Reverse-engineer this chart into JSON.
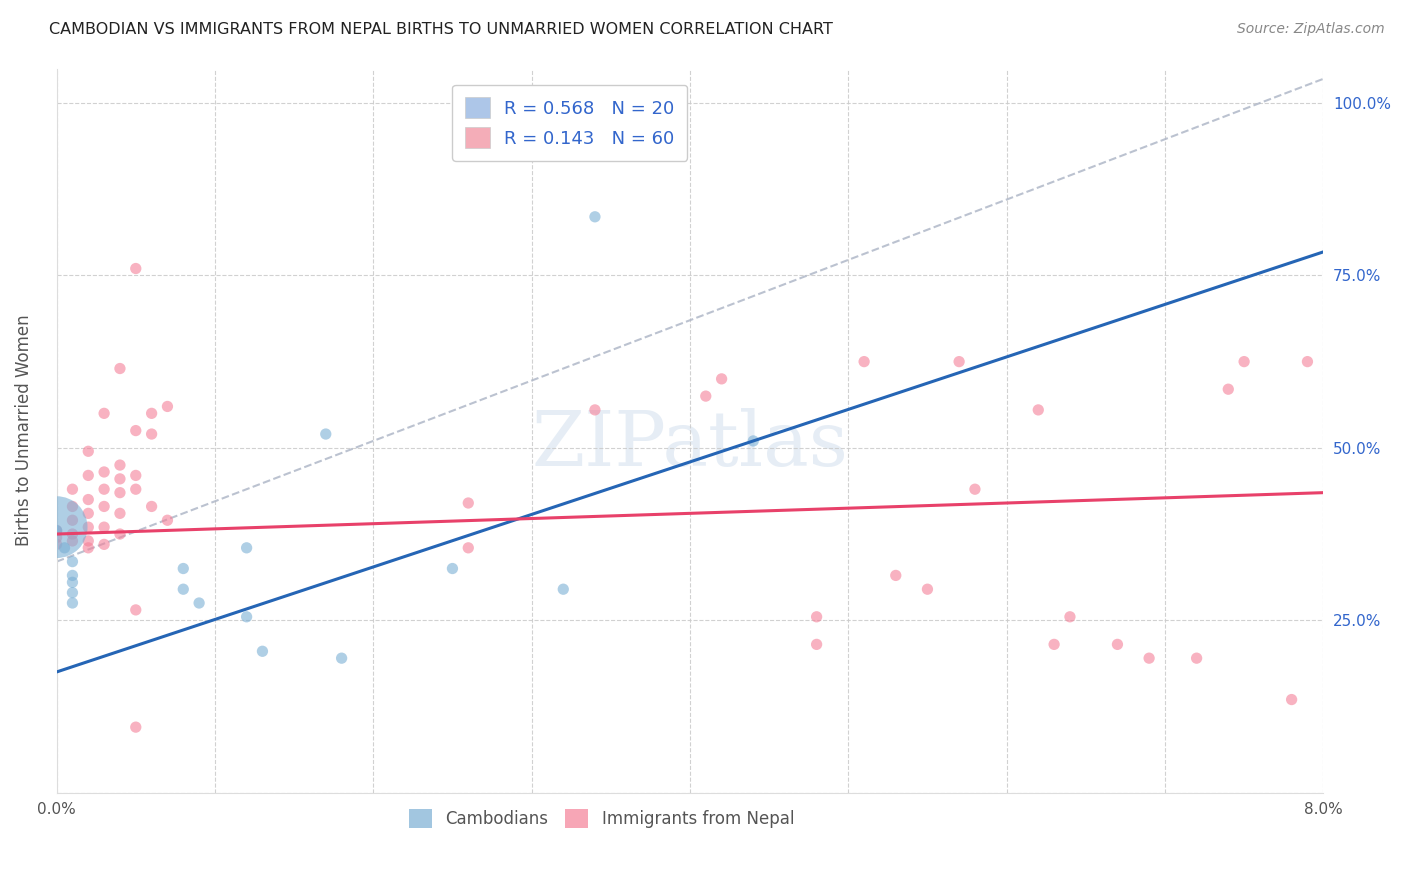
{
  "title": "CAMBODIAN VS IMMIGRANTS FROM NEPAL BIRTHS TO UNMARRIED WOMEN CORRELATION CHART",
  "source": "Source: ZipAtlas.com",
  "ylabel": "Births to Unmarried Women",
  "yticks": [
    0.0,
    0.25,
    0.5,
    0.75,
    1.0
  ],
  "ytick_labels": [
    "",
    "25.0%",
    "50.0%",
    "75.0%",
    "100.0%"
  ],
  "xlim": [
    0.0,
    0.08
  ],
  "ylim": [
    0.0,
    1.05
  ],
  "legend_entries": [
    {
      "label_r": "R = 0.568",
      "label_n": "N = 20",
      "color": "#adc6e8"
    },
    {
      "label_r": "R = 0.143",
      "label_n": "N = 60",
      "color": "#f4adb8"
    }
  ],
  "watermark": "ZIPatlas",
  "cambodian_color": "#7bafd4",
  "nepal_color": "#f48098",
  "cambodian_trend_color": "#2565b5",
  "nepal_trend_color": "#e8416a",
  "ref_line_color": "#b0b8c8",
  "cambodian_R": 0.568,
  "cambodian_N": 20,
  "nepal_R": 0.143,
  "nepal_N": 60,
  "cambodian_trend_x0": 0.0,
  "cambodian_trend_y0": 0.175,
  "cambodian_trend_x1": 0.044,
  "cambodian_trend_y1": 0.51,
  "nepal_trend_x0": 0.0,
  "nepal_trend_y0": 0.375,
  "nepal_trend_x1": 0.08,
  "nepal_trend_y1": 0.435,
  "ref_line_x0": 0.0,
  "ref_line_y0": 0.335,
  "ref_line_x1": 0.08,
  "ref_line_y1": 1.035,
  "cambodian_points": [
    [
      0.0005,
      0.355
    ],
    [
      0.001,
      0.335
    ],
    [
      0.001,
      0.305
    ],
    [
      0.001,
      0.29
    ],
    [
      0.001,
      0.275
    ],
    [
      0.0,
      0.385
    ],
    [
      0.008,
      0.325
    ],
    [
      0.008,
      0.295
    ],
    [
      0.009,
      0.275
    ],
    [
      0.012,
      0.355
    ],
    [
      0.012,
      0.255
    ],
    [
      0.013,
      0.205
    ],
    [
      0.017,
      0.52
    ],
    [
      0.018,
      0.195
    ],
    [
      0.025,
      0.325
    ],
    [
      0.032,
      0.295
    ],
    [
      0.034,
      0.835
    ],
    [
      0.044,
      0.51
    ],
    [
      0.0,
      0.38
    ],
    [
      0.001,
      0.315
    ]
  ],
  "cambodian_sizes": [
    30,
    30,
    30,
    30,
    30,
    900,
    30,
    30,
    30,
    30,
    30,
    30,
    30,
    30,
    30,
    30,
    30,
    30,
    30,
    30
  ],
  "nepal_points": [
    [
      0.0,
      0.38
    ],
    [
      0.0,
      0.37
    ],
    [
      0.0,
      0.36
    ],
    [
      0.001,
      0.44
    ],
    [
      0.001,
      0.415
    ],
    [
      0.001,
      0.395
    ],
    [
      0.001,
      0.375
    ],
    [
      0.001,
      0.365
    ],
    [
      0.002,
      0.495
    ],
    [
      0.002,
      0.46
    ],
    [
      0.002,
      0.425
    ],
    [
      0.002,
      0.405
    ],
    [
      0.002,
      0.385
    ],
    [
      0.002,
      0.365
    ],
    [
      0.002,
      0.355
    ],
    [
      0.003,
      0.55
    ],
    [
      0.003,
      0.465
    ],
    [
      0.003,
      0.44
    ],
    [
      0.003,
      0.415
    ],
    [
      0.003,
      0.385
    ],
    [
      0.003,
      0.36
    ],
    [
      0.004,
      0.615
    ],
    [
      0.004,
      0.475
    ],
    [
      0.004,
      0.455
    ],
    [
      0.004,
      0.435
    ],
    [
      0.004,
      0.405
    ],
    [
      0.004,
      0.375
    ],
    [
      0.005,
      0.76
    ],
    [
      0.005,
      0.525
    ],
    [
      0.005,
      0.46
    ],
    [
      0.005,
      0.44
    ],
    [
      0.005,
      0.265
    ],
    [
      0.005,
      0.095
    ],
    [
      0.006,
      0.55
    ],
    [
      0.006,
      0.52
    ],
    [
      0.006,
      0.415
    ],
    [
      0.007,
      0.56
    ],
    [
      0.007,
      0.395
    ],
    [
      0.026,
      0.42
    ],
    [
      0.026,
      0.355
    ],
    [
      0.034,
      0.555
    ],
    [
      0.041,
      0.575
    ],
    [
      0.042,
      0.6
    ],
    [
      0.048,
      0.255
    ],
    [
      0.048,
      0.215
    ],
    [
      0.055,
      0.295
    ],
    [
      0.057,
      0.625
    ],
    [
      0.062,
      0.555
    ],
    [
      0.063,
      0.215
    ],
    [
      0.069,
      0.195
    ],
    [
      0.072,
      0.195
    ],
    [
      0.074,
      0.585
    ],
    [
      0.075,
      0.625
    ],
    [
      0.078,
      0.135
    ],
    [
      0.079,
      0.625
    ],
    [
      0.051,
      0.625
    ],
    [
      0.053,
      0.315
    ],
    [
      0.058,
      0.44
    ],
    [
      0.064,
      0.255
    ],
    [
      0.067,
      0.215
    ]
  ],
  "nepal_sizes": [
    30,
    30,
    30,
    30,
    30,
    30,
    30,
    30,
    30,
    30,
    30,
    30,
    30,
    30,
    30,
    30,
    30,
    30,
    30,
    30,
    30,
    30,
    30,
    30,
    30,
    30,
    30,
    30,
    30,
    30,
    30,
    30,
    30,
    30,
    30,
    30,
    30,
    30,
    30,
    30,
    30,
    30,
    30,
    30,
    30,
    30,
    30,
    30,
    30,
    30,
    30,
    30,
    30,
    30,
    30,
    30,
    30,
    30,
    30,
    30
  ]
}
